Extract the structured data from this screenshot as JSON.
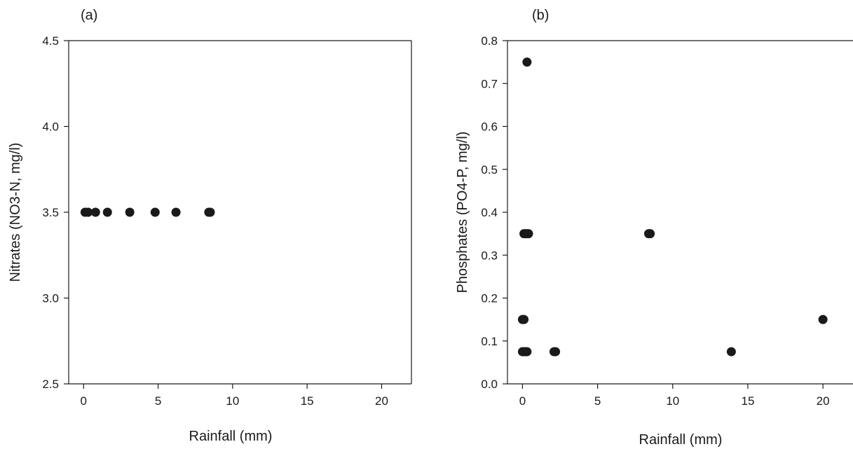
{
  "chart_data": [
    {
      "type": "scatter",
      "panel_label": "(a)",
      "xlabel": "Rainfall (mm)",
      "ylabel": "Nitrates (NO3-N, mg/l)",
      "xlim": [
        -1,
        22
      ],
      "ylim": [
        2.5,
        4.5
      ],
      "xticks": [
        0,
        5,
        10,
        15,
        20
      ],
      "yticks": [
        2.5,
        3.0,
        3.5,
        4.0,
        4.5
      ],
      "ytick_labels": [
        "2.5",
        "3.0",
        "3.5",
        "4.0",
        "4.5"
      ],
      "grid": false,
      "marker_color": "#1a1a1a",
      "series": [
        {
          "x": [
            0.1,
            0.3,
            0.8,
            1.6,
            3.1,
            4.8,
            6.2,
            8.4,
            8.5
          ],
          "y": [
            3.5,
            3.5,
            3.5,
            3.5,
            3.5,
            3.5,
            3.5,
            3.5,
            3.5
          ]
        }
      ]
    },
    {
      "type": "scatter",
      "panel_label": "(b)",
      "xlabel": "Rainfall (mm)",
      "ylabel": "Phosphates (PO4-P, mg/l)",
      "xlim": [
        -1,
        22
      ],
      "ylim": [
        0,
        0.8
      ],
      "xticks": [
        0,
        5,
        10,
        15,
        20
      ],
      "yticks": [
        0,
        0.1,
        0.2,
        0.3,
        0.4,
        0.5,
        0.6,
        0.7,
        0.8
      ],
      "ytick_labels": [
        "0.0",
        "0.1",
        "0.2",
        "0.3",
        "0.4",
        "0.5",
        "0.6",
        "0.7",
        "0.8"
      ],
      "grid": false,
      "marker_color": "#1a1a1a",
      "series": [
        {
          "x": [
            0.0,
            0.1,
            0.2,
            0.3,
            0.0,
            0.1,
            0.1,
            0.2,
            0.3,
            0.4,
            0.3,
            2.1,
            2.2,
            8.4,
            8.5,
            13.9,
            20.0
          ],
          "y": [
            0.075,
            0.075,
            0.075,
            0.075,
            0.15,
            0.15,
            0.35,
            0.35,
            0.35,
            0.35,
            0.75,
            0.075,
            0.075,
            0.35,
            0.35,
            0.075,
            0.15
          ]
        }
      ]
    }
  ]
}
